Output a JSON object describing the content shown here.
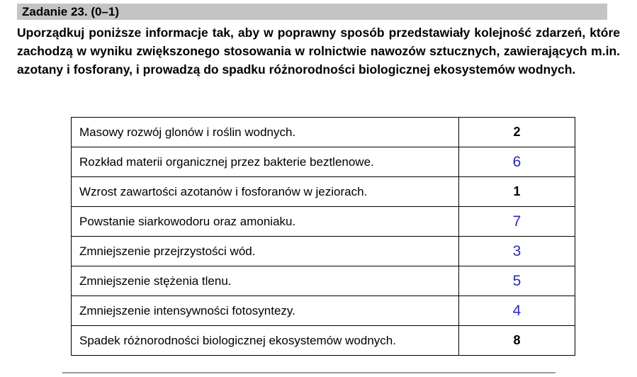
{
  "task": {
    "header": "Zadanie 23. (0–1)",
    "instruction": "Uporządkuj poniższe informacje tak, aby w poprawny sposób przedstawiały kolejność zdarzeń, które zachodzą w wyniku zwiększonego stosowania w rolnictwie nawozów sztucznych, zawierających m.in. azotany i fosforany, i prowadzą do spadku różnorodności biologicznej ekosystemów wodnych."
  },
  "table": {
    "rows": [
      {
        "text": "Masowy rozwój glonów i roślin wodnych.",
        "value": "2",
        "kind": "given"
      },
      {
        "text": "Rozkład materii organicznej przez bakterie beztlenowe.",
        "value": "6",
        "kind": "answer"
      },
      {
        "text": "Wzrost zawartości azotanów i fosforanów w jeziorach.",
        "value": "1",
        "kind": "given"
      },
      {
        "text": "Powstanie siarkowodoru oraz amoniaku.",
        "value": "7",
        "kind": "answer"
      },
      {
        "text": "Zmniejszenie przejrzystości wód.",
        "value": "3",
        "kind": "answer"
      },
      {
        "text": "Zmniejszenie stężenia tlenu.",
        "value": "5",
        "kind": "answer"
      },
      {
        "text": "Zmniejszenie intensywności fotosyntezy.",
        "value": "4",
        "kind": "answer"
      },
      {
        "text": "Spadek różnorodności biologicznej ekosystemów wodnych.",
        "value": "8",
        "kind": "given"
      }
    ]
  },
  "colors": {
    "header_bg": "#c4c4c4",
    "answer_blue": "#2a2ab2",
    "given_black": "#000000",
    "table_border": "#000000"
  }
}
